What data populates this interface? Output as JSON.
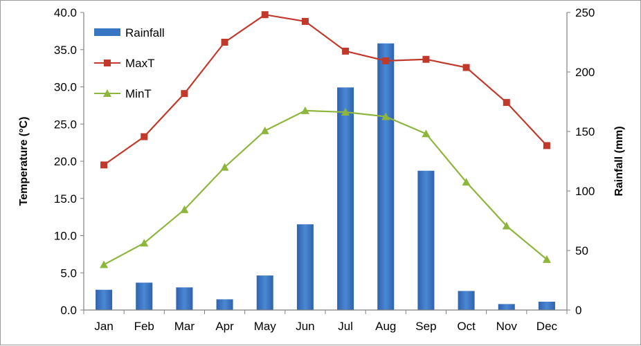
{
  "chart_data": {
    "type": "bar",
    "categories": [
      "Jan",
      "Feb",
      "Mar",
      "Apr",
      "May",
      "Jun",
      "Jul",
      "Aug",
      "Sep",
      "Oct",
      "Nov",
      "Dec"
    ],
    "series": [
      {
        "name": "Rainfall",
        "type": "bar",
        "axis": "right",
        "color": "#3a75c4",
        "values": [
          17,
          23,
          19,
          9,
          29,
          72,
          187,
          224,
          117,
          16,
          5,
          7
        ]
      },
      {
        "name": "MaxT",
        "type": "line",
        "axis": "left",
        "color": "#c0392b",
        "marker": "square",
        "values": [
          19.5,
          23.3,
          29.1,
          36.0,
          39.7,
          38.8,
          34.8,
          33.5,
          33.7,
          32.6,
          27.9,
          22.1
        ]
      },
      {
        "name": "MinT",
        "type": "line",
        "axis": "left",
        "color": "#8db63c",
        "marker": "triangle",
        "values": [
          6.1,
          9.0,
          13.5,
          19.2,
          24.1,
          26.8,
          26.6,
          26.0,
          23.7,
          17.2,
          11.3,
          6.8
        ]
      }
    ],
    "ylabel": "Temperature (°C)",
    "y2label": "Rainfall (mm)",
    "ylim": [
      0,
      40
    ],
    "y2lim": [
      0,
      250
    ],
    "yticks": [
      "0.0",
      "5.0",
      "10.0",
      "15.0",
      "20.0",
      "25.0",
      "30.0",
      "35.0",
      "40.0"
    ],
    "y2ticks": [
      "0",
      "50",
      "100",
      "150",
      "200",
      "250"
    ],
    "legend_position": "top-left",
    "grid": false
  }
}
